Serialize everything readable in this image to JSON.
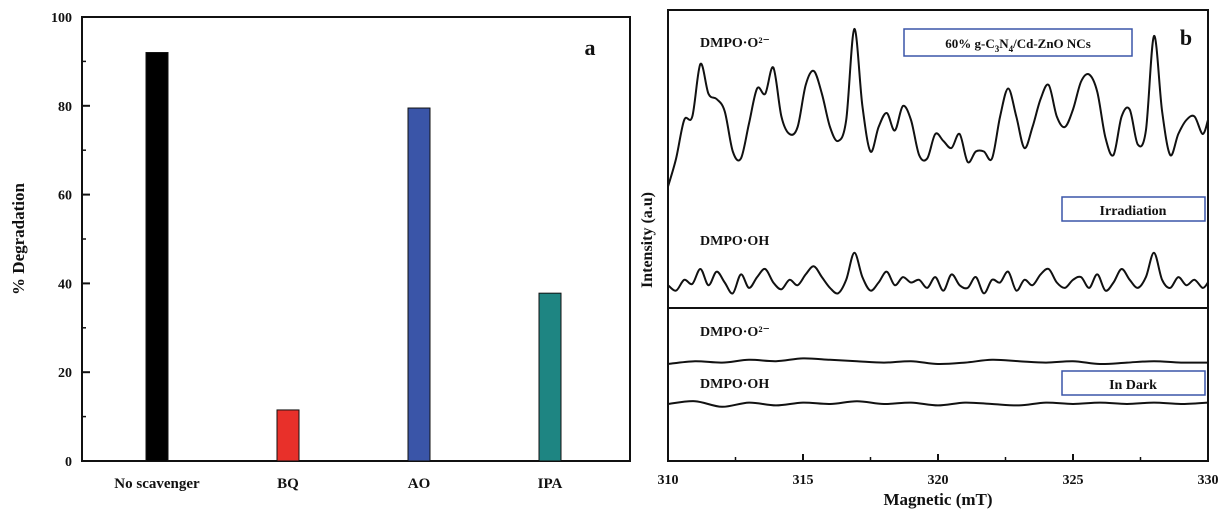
{
  "chart_data": [
    {
      "type": "bar",
      "panel_label": "a",
      "categories": [
        "No scavenger",
        "BQ",
        "AO",
        "IPA"
      ],
      "values": [
        92,
        11.5,
        79.5,
        37.8
      ],
      "colors": [
        "#000000",
        "#e8302a",
        "#3a55a8",
        "#1e8582"
      ],
      "ylabel": "% Degradation",
      "xlabel": "",
      "ylim": [
        0,
        100
      ],
      "yticks": [
        "0",
        "20",
        "40",
        "60",
        "80",
        "100"
      ],
      "grid": false
    },
    {
      "type": "line",
      "panel_label": "b",
      "xlabel": "Magnetic (mT)",
      "ylabel": "Intensity (a.u)",
      "xlim": [
        310,
        330
      ],
      "xticks": [
        "310",
        "315",
        "320",
        "325",
        "330"
      ],
      "grid": false,
      "sample_label": "60% g-C3N4/Cd-ZnO NCs",
      "sample_label_parts": {
        "pre": "60% g-C",
        "sub1": "3",
        "mid": "N",
        "sub2": "4",
        "post": "/Cd-ZnO NCs"
      },
      "condition_labels": [
        "Irradiation",
        "In Dark"
      ],
      "series": [
        {
          "name": "DMPO·O²⁻",
          "condition": "Irradiation",
          "x": [
            310.0,
            310.3,
            310.6,
            310.9,
            311.2,
            311.5,
            311.8,
            312.1,
            312.4,
            312.7,
            313.0,
            313.3,
            313.6,
            313.9,
            314.2,
            314.5,
            314.8,
            315.1,
            315.4,
            315.7,
            316.0,
            316.3,
            316.6,
            316.9,
            317.2,
            317.5,
            317.8,
            318.1,
            318.4,
            318.7,
            319.0,
            319.3,
            319.6,
            319.9,
            320.2,
            320.5,
            320.8,
            321.1,
            321.4,
            321.7,
            322.0,
            322.3,
            322.6,
            322.9,
            323.2,
            323.5,
            323.8,
            324.1,
            324.4,
            324.7,
            325.0,
            325.3,
            325.6,
            325.9,
            326.2,
            326.5,
            326.8,
            327.1,
            327.4,
            327.7,
            328.0,
            328.3,
            328.6,
            328.9,
            329.2,
            329.5,
            329.8,
            330.0
          ],
          "y": [
            2,
            18,
            40,
            42,
            72,
            55,
            52,
            45,
            22,
            18,
            38,
            58,
            55,
            70,
            42,
            32,
            36,
            60,
            68,
            55,
            36,
            28,
            40,
            92,
            48,
            22,
            36,
            44,
            34,
            48,
            40,
            20,
            18,
            32,
            28,
            24,
            32,
            16,
            22,
            22,
            18,
            42,
            58,
            42,
            24,
            36,
            52,
            60,
            42,
            36,
            46,
            62,
            66,
            56,
            30,
            20,
            42,
            46,
            26,
            34,
            88,
            45,
            20,
            32,
            40,
            42,
            32,
            40
          ]
        },
        {
          "name": "DMPO·OH",
          "condition": "Irradiation",
          "x": [
            310.0,
            310.3,
            310.6,
            310.9,
            311.2,
            311.5,
            311.8,
            312.1,
            312.4,
            312.7,
            313.0,
            313.3,
            313.6,
            313.9,
            314.2,
            314.5,
            314.8,
            315.1,
            315.4,
            315.7,
            316.0,
            316.3,
            316.6,
            316.9,
            317.2,
            317.5,
            317.8,
            318.1,
            318.4,
            318.7,
            319.0,
            319.3,
            319.6,
            319.9,
            320.2,
            320.5,
            320.8,
            321.1,
            321.4,
            321.7,
            322.0,
            322.3,
            322.6,
            322.9,
            323.2,
            323.5,
            323.8,
            324.1,
            324.4,
            324.7,
            325.0,
            325.3,
            325.6,
            325.9,
            326.2,
            326.5,
            326.8,
            327.1,
            327.4,
            327.7,
            328.0,
            328.3,
            328.6,
            328.9,
            329.2,
            329.5,
            329.8,
            330.0
          ],
          "y": [
            8,
            4,
            12,
            9,
            20,
            8,
            18,
            10,
            2,
            16,
            6,
            14,
            20,
            10,
            5,
            12,
            8,
            16,
            22,
            14,
            6,
            2,
            12,
            32,
            14,
            4,
            10,
            18,
            8,
            14,
            10,
            12,
            6,
            14,
            4,
            16,
            8,
            6,
            14,
            2,
            12,
            10,
            18,
            4,
            12,
            8,
            16,
            20,
            10,
            6,
            12,
            14,
            6,
            16,
            4,
            10,
            20,
            12,
            6,
            14,
            32,
            12,
            6,
            14,
            8,
            12,
            6,
            10
          ]
        },
        {
          "name": "DMPO·O²⁻",
          "condition": "In Dark",
          "x": [
            310.0,
            311.0,
            312.0,
            313.0,
            314.0,
            315.0,
            316.0,
            317.0,
            318.0,
            319.0,
            320.0,
            321.0,
            322.0,
            323.0,
            324.0,
            325.0,
            326.0,
            327.0,
            328.0,
            329.0,
            330.0
          ],
          "y": [
            0,
            2,
            1,
            3,
            2,
            4,
            3,
            2,
            1,
            2,
            0,
            1,
            3,
            2,
            1,
            2,
            0,
            1,
            2,
            1,
            1
          ]
        },
        {
          "name": "DMPO·OH",
          "condition": "In Dark",
          "x": [
            310.0,
            311.0,
            312.0,
            313.0,
            314.0,
            315.0,
            316.0,
            317.0,
            318.0,
            319.0,
            320.0,
            321.0,
            322.0,
            323.0,
            324.0,
            325.0,
            326.0,
            327.0,
            328.0,
            329.0,
            330.0
          ],
          "y": [
            0,
            2,
            -2,
            1,
            -1,
            1,
            0,
            2,
            0,
            1,
            -1,
            1,
            0,
            -1,
            1,
            0,
            1,
            0,
            1,
            0,
            1
          ]
        }
      ]
    }
  ]
}
